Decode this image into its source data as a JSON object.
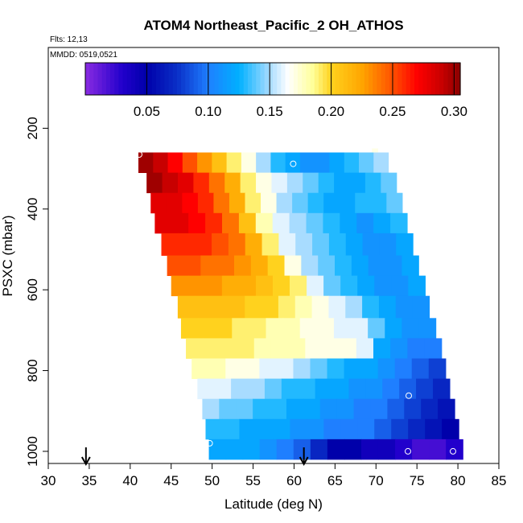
{
  "chart_data": {
    "type": "heatmap",
    "title": "ATOM4 Northeast_Pacific_2 OH_ATHOS",
    "annotations": [
      "Flts: 12,13",
      "MMDD: 0519,0521"
    ],
    "xlabel": "Latitude (deg N)",
    "ylabel": "PSXC (mbar)",
    "xlim": [
      30,
      85
    ],
    "ylim": [
      1030,
      0
    ],
    "x_ticks": [
      30,
      35,
      40,
      45,
      50,
      55,
      60,
      65,
      70,
      75,
      80,
      85
    ],
    "y_ticks": [
      200,
      400,
      600,
      800,
      1000
    ],
    "colorbar": {
      "range": [
        0.0,
        0.305
      ],
      "ticks": [
        0.05,
        0.1,
        0.15,
        0.2,
        0.25,
        0.3
      ],
      "tick_labels": [
        "0.05",
        "0.10",
        "0.15",
        "0.20",
        "0.25",
        "0.30"
      ],
      "stops": [
        [
          0.0,
          "#8a2be2"
        ],
        [
          0.03,
          "#2200cc"
        ],
        [
          0.05,
          "#0000aa"
        ],
        [
          0.075,
          "#0a30c8"
        ],
        [
          0.1,
          "#1f7fff"
        ],
        [
          0.125,
          "#00b0ff"
        ],
        [
          0.15,
          "#a8dcff"
        ],
        [
          0.165,
          "#ffffff"
        ],
        [
          0.185,
          "#ffff99"
        ],
        [
          0.2,
          "#ffd21e"
        ],
        [
          0.225,
          "#ffa500"
        ],
        [
          0.25,
          "#ff5000"
        ],
        [
          0.27,
          "#ff0000"
        ],
        [
          0.29,
          "#c80000"
        ],
        [
          0.305,
          "#8b0000"
        ]
      ]
    },
    "rows": [
      {
        "p_top": 250,
        "p_bot": 270,
        "lat_start": 69.5,
        "lat_end": 70.2,
        "values": [
          0.17
        ]
      },
      {
        "p_top": 260,
        "p_bot": 310,
        "lat_start": 41.0,
        "lat_end": 71.5,
        "values": [
          0.3,
          0.29,
          0.27,
          0.25,
          0.23,
          0.21,
          0.19,
          0.17,
          0.15,
          0.13,
          0.12,
          0.11,
          0.11,
          0.12,
          0.13,
          0.14,
          0.15
        ]
      },
      {
        "p_top": 310,
        "p_bot": 360,
        "lat_start": 42.0,
        "lat_end": 72.5,
        "values": [
          0.3,
          0.29,
          0.28,
          0.26,
          0.24,
          0.22,
          0.19,
          0.17,
          0.16,
          0.15,
          0.14,
          0.13,
          0.12,
          0.12,
          0.13,
          0.14
        ]
      },
      {
        "p_top": 360,
        "p_bot": 410,
        "lat_start": 42.5,
        "lat_end": 73.2,
        "values": [
          0.28,
          0.28,
          0.27,
          0.26,
          0.24,
          0.22,
          0.19,
          0.17,
          0.15,
          0.14,
          0.13,
          0.12,
          0.12,
          0.13,
          0.13,
          0.14
        ]
      },
      {
        "p_top": 410,
        "p_bot": 460,
        "lat_start": 43.0,
        "lat_end": 73.8,
        "values": [
          0.28,
          0.28,
          0.27,
          0.26,
          0.24,
          0.21,
          0.18,
          0.16,
          0.15,
          0.14,
          0.13,
          0.12,
          0.11,
          0.12,
          0.13
        ]
      },
      {
        "p_top": 460,
        "p_bot": 515,
        "lat_start": 43.8,
        "lat_end": 74.5,
        "values": [
          0.26,
          0.26,
          0.26,
          0.25,
          0.24,
          0.22,
          0.19,
          0.16,
          0.15,
          0.14,
          0.13,
          0.12,
          0.11,
          0.11,
          0.12
        ]
      },
      {
        "p_top": 515,
        "p_bot": 565,
        "lat_start": 44.5,
        "lat_end": 75.2,
        "values": [
          0.25,
          0.25,
          0.24,
          0.24,
          0.23,
          0.22,
          0.2,
          0.17,
          0.15,
          0.14,
          0.13,
          0.12,
          0.11,
          0.11,
          0.12
        ]
      },
      {
        "p_top": 565,
        "p_bot": 615,
        "lat_start": 45.0,
        "lat_end": 76.0,
        "values": [
          0.23,
          0.23,
          0.23,
          0.22,
          0.22,
          0.21,
          0.2,
          0.19,
          0.16,
          0.14,
          0.13,
          0.12,
          0.11,
          0.11,
          0.12
        ]
      },
      {
        "p_top": 615,
        "p_bot": 670,
        "lat_start": 45.8,
        "lat_end": 76.5,
        "values": [
          0.21,
          0.21,
          0.21,
          0.21,
          0.2,
          0.2,
          0.19,
          0.18,
          0.17,
          0.16,
          0.15,
          0.13,
          0.12,
          0.11,
          0.11
        ]
      },
      {
        "p_top": 670,
        "p_bot": 720,
        "lat_start": 46.2,
        "lat_end": 77.3,
        "values": [
          0.2,
          0.2,
          0.2,
          0.19,
          0.19,
          0.18,
          0.18,
          0.17,
          0.17,
          0.16,
          0.16,
          0.14,
          0.12,
          0.11,
          0.11
        ]
      },
      {
        "p_top": 720,
        "p_bot": 770,
        "lat_start": 46.8,
        "lat_end": 78.0,
        "values": [
          0.19,
          0.19,
          0.19,
          0.19,
          0.18,
          0.18,
          0.18,
          0.17,
          0.17,
          0.17,
          0.16,
          0.12,
          0.11,
          0.1,
          0.1
        ]
      },
      {
        "p_top": 770,
        "p_bot": 820,
        "lat_start": 47.5,
        "lat_end": 78.5,
        "values": [
          0.18,
          0.18,
          0.17,
          0.17,
          0.16,
          0.16,
          0.15,
          0.14,
          0.13,
          0.12,
          0.12,
          0.11,
          0.1,
          0.09,
          0.08
        ]
      },
      {
        "p_top": 820,
        "p_bot": 870,
        "lat_start": 48.2,
        "lat_end": 79.0,
        "values": [
          0.16,
          0.16,
          0.15,
          0.15,
          0.14,
          0.13,
          0.13,
          0.12,
          0.12,
          0.11,
          0.11,
          0.1,
          0.09,
          0.08,
          0.07
        ]
      },
      {
        "p_top": 870,
        "p_bot": 920,
        "lat_start": 48.8,
        "lat_end": 79.6,
        "values": [
          0.15,
          0.14,
          0.14,
          0.13,
          0.13,
          0.12,
          0.12,
          0.11,
          0.11,
          0.1,
          0.1,
          0.09,
          0.08,
          0.07,
          0.06
        ]
      },
      {
        "p_top": 920,
        "p_bot": 970,
        "lat_start": 49.2,
        "lat_end": 80.1,
        "values": [
          0.13,
          0.13,
          0.12,
          0.12,
          0.12,
          0.11,
          0.11,
          0.1,
          0.1,
          0.1,
          0.09,
          0.08,
          0.07,
          0.06,
          0.05
        ]
      },
      {
        "p_top": 970,
        "p_bot": 1020,
        "lat_start": 49.6,
        "lat_end": 80.6,
        "values": [
          0.12,
          0.12,
          0.12,
          0.11,
          0.1,
          0.09,
          0.07,
          0.05,
          0.05,
          0.04,
          0.04,
          0.03,
          0.02,
          0.02,
          0.03
        ]
      }
    ],
    "markers": [
      {
        "lat": 41.1,
        "p": 265
      },
      {
        "lat": 59.9,
        "p": 288
      },
      {
        "lat": 74.0,
        "p": 862
      },
      {
        "lat": 49.7,
        "p": 980
      },
      {
        "lat": 73.9,
        "p": 1000
      },
      {
        "lat": 79.4,
        "p": 1000
      }
    ],
    "arrows": [
      {
        "lat": 34.6
      },
      {
        "lat": 61.2
      }
    ]
  }
}
